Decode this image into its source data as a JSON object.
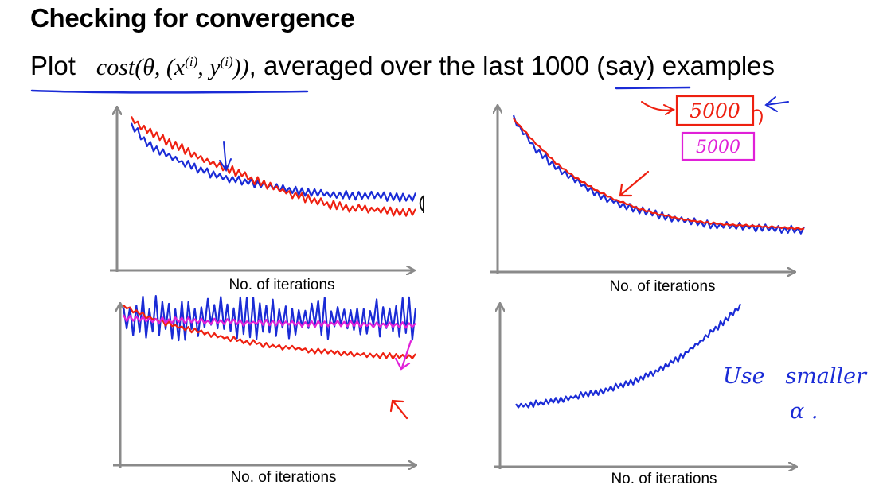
{
  "slide": {
    "title": "Checking for convergence",
    "subtitle": {
      "plot_word": "Plot",
      "formula_a": "cost(θ, (x",
      "sup_x": "(i)",
      "formula_b": ", y",
      "sup_y": "(i)",
      "formula_c": "))",
      "after_formula": ", averaged over the last ",
      "highlight_number": "1000",
      "tail": " (say) examples"
    },
    "annotations": {
      "boxed_number": "5000",
      "boxed_number_pink": "5000",
      "note_line1": "Use   smaller",
      "note_line2": "α ."
    },
    "colors": {
      "axis": "#8a8a8a",
      "ink_blue": "#1a2bd6",
      "ink_red": "#ee2010",
      "ink_pink": "#e020d8"
    }
  },
  "chart_data": [
    {
      "type": "line",
      "xlabel": "No. of iterations",
      "ylabel": "",
      "axis_ticks": false,
      "series": [
        {
          "color": "#1a2bd6",
          "values": [
            0.95,
            0.8,
            0.72,
            0.65,
            0.6,
            0.56,
            0.53,
            0.5,
            0.48,
            0.46,
            0.45,
            0.44,
            0.44,
            0.43,
            0.43
          ]
        },
        {
          "color": "#ee2010",
          "values": [
            1.0,
            0.9,
            0.82,
            0.75,
            0.68,
            0.62,
            0.56,
            0.5,
            0.45,
            0.4,
            0.37,
            0.35,
            0.34,
            0.33,
            0.32
          ]
        }
      ]
    },
    {
      "type": "line",
      "xlabel": "No. of iterations",
      "ylabel": "",
      "axis_ticks": false,
      "series": [
        {
          "color": "#1a2bd6",
          "values": [
            1.0,
            0.75,
            0.58,
            0.45,
            0.34,
            0.26,
            0.2,
            0.15,
            0.11,
            0.08,
            0.06,
            0.05,
            0.04,
            0.03,
            0.02
          ]
        },
        {
          "color": "#ee2010",
          "values": [
            1.0,
            0.8,
            0.62,
            0.48,
            0.37,
            0.28,
            0.21,
            0.16,
            0.12,
            0.09,
            0.07,
            0.06,
            0.05,
            0.04,
            0.03
          ]
        }
      ]
    },
    {
      "type": "line",
      "xlabel": "No. of iterations",
      "ylabel": "",
      "axis_ticks": false,
      "series": [
        {
          "color": "#1a2bd6",
          "values": [
            0.8,
            0.8,
            0.8,
            0.8,
            0.8,
            0.8,
            0.8,
            0.8,
            0.8,
            0.8,
            0.8,
            0.8,
            0.8,
            0.8,
            0.8
          ]
        },
        {
          "color": "#ee2010",
          "values": [
            0.9,
            0.82,
            0.76,
            0.71,
            0.67,
            0.63,
            0.6,
            0.57,
            0.55,
            0.53,
            0.51,
            0.5,
            0.49,
            0.48,
            0.48
          ]
        },
        {
          "color": "#e020d8",
          "values": [
            0.8,
            0.79,
            0.78,
            0.78,
            0.77,
            0.77,
            0.76,
            0.76,
            0.76,
            0.75,
            0.75,
            0.75,
            0.74,
            0.74,
            0.74
          ]
        }
      ]
    },
    {
      "type": "line",
      "xlabel": "No. of iterations",
      "ylabel": "",
      "axis_ticks": false,
      "series": [
        {
          "color": "#1a2bd6",
          "values": [
            0.08,
            0.1,
            0.12,
            0.15,
            0.18,
            0.21,
            0.25,
            0.29,
            0.35,
            0.42,
            0.51,
            0.62,
            0.74,
            0.87,
            1.0
          ]
        }
      ]
    }
  ]
}
